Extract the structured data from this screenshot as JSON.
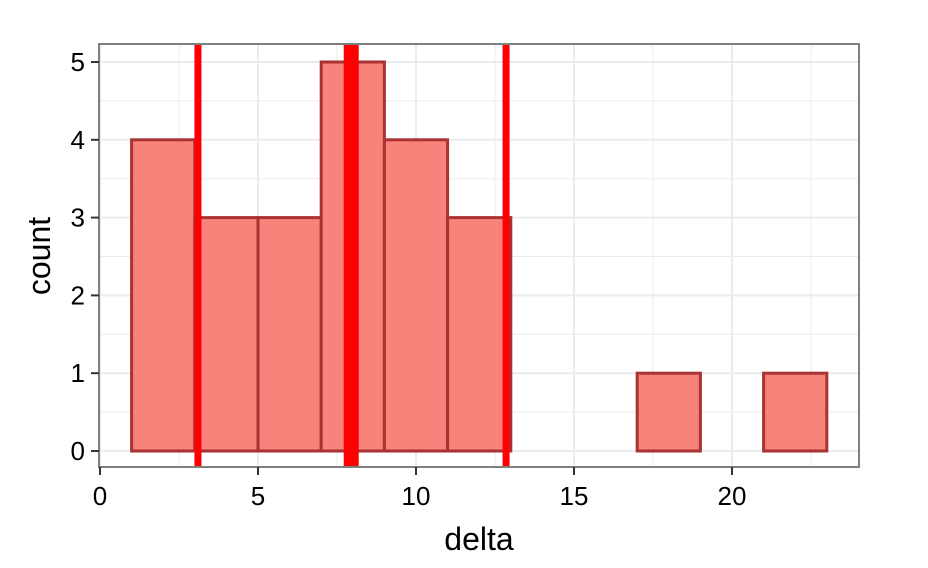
{
  "chart_data": {
    "type": "bar",
    "xlabel": "delta",
    "ylabel": "count",
    "xlim": [
      0,
      24
    ],
    "ylim": [
      0,
      5.25
    ],
    "x_ticks": [
      0,
      5,
      10,
      15,
      20
    ],
    "y_ticks": [
      0,
      1,
      2,
      3,
      4,
      5
    ],
    "bins": [
      {
        "x0": 1,
        "x1": 3,
        "count": 4
      },
      {
        "x0": 3,
        "x1": 5,
        "count": 3
      },
      {
        "x0": 5,
        "x1": 7,
        "count": 3
      },
      {
        "x0": 7,
        "x1": 9,
        "count": 5
      },
      {
        "x0": 9,
        "x1": 11,
        "count": 4
      },
      {
        "x0": 11,
        "x1": 13,
        "count": 3
      },
      {
        "x0": 13,
        "x1": 15,
        "count": 0
      },
      {
        "x0": 15,
        "x1": 17,
        "count": 0
      },
      {
        "x0": 17,
        "x1": 19,
        "count": 1
      },
      {
        "x0": 19,
        "x1": 21,
        "count": 0
      },
      {
        "x0": 21,
        "x1": 23,
        "count": 1
      }
    ],
    "reference_lines": [
      {
        "x": 3.1,
        "emphasis": "normal"
      },
      {
        "x": 7.95,
        "emphasis": "thick"
      },
      {
        "x": 12.85,
        "emphasis": "normal"
      }
    ],
    "grid": true,
    "colors": {
      "bar_fill": "#f8837a",
      "bar_stroke": "#a93232",
      "reference_line": "#ff0000",
      "grid": "#ebebeb",
      "panel_border": "#7f7f7f"
    }
  }
}
